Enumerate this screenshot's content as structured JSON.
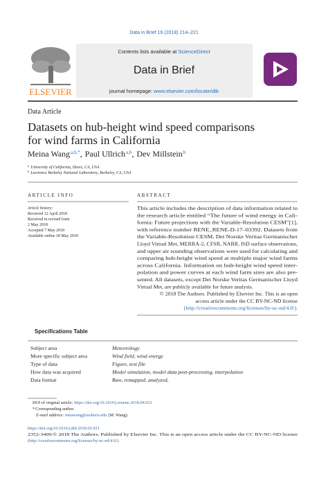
{
  "journal_ref": "Data in Brief 19 (2018) 214–221",
  "header": {
    "publisher_logo": "ELSEVIER",
    "contents": "Contents lists available at",
    "contents_link": "ScienceDirect",
    "journal": "Data in Brief",
    "homepage_label": "journal homepage:",
    "homepage_url": "www.elsevier.com/locate/dib"
  },
  "article_type": "Data Article",
  "title_lines": [
    "Datasets on hub-height wind speed comparisons",
    "for wind farms in California"
  ],
  "authors": [
    {
      "name": "Meina Wang",
      "affiliations": "a,b,*"
    },
    {
      "name": "Paul Ullrich",
      "affiliations": "a,b"
    },
    {
      "name": "Dev Millstein",
      "affiliations": "b"
    }
  ],
  "author_separator": ",",
  "affiliations": [
    {
      "mark": "a",
      "text": "University of California, Davis, CA, USA"
    },
    {
      "mark": "b",
      "text": "Lawrence Berkeley National Laboratory, Berkeley, CA, USA"
    }
  ],
  "article_info": {
    "heading": "ARTICLE INFO",
    "history_label": "Article history:",
    "history": [
      "Received 12 April 2018",
      "Received in revised form",
      "2 May 2018",
      "Accepted 7 May 2018",
      "Available online 18 May 2018"
    ]
  },
  "abstract": {
    "heading": "ABSTRACT",
    "lines": [
      "This article includes the description of data information related to",
      "the research article entitled “The future of wind energy in Cali-",
      "fornia: Future projections with the Variable-Resolution CESM”[1],",
      "with reference number RENE_RENE-D-17–03392. Datasets from",
      "the Variable-Resolution CESM, Det Norske Veritas Germanischer",
      "Lloyd Virtual Met, MERRA-2, CFSR, NARR, ISD surface observations,",
      "and upper air sounding observations were used for calculating and",
      "comparing hub-height wind speed at multiple major wind farms",
      "across California. Information on hub-height wind speed inter-",
      "polation and power curves at each wind farm sites are also pre-",
      "sented. All datasets, except Det Norske Veritas Germanischer Lloyd",
      "Virtual Met, are publicly available for future analysis."
    ],
    "license_lines": [
      "© 2018 The Authors. Published by Elsevier Inc. This is an open",
      "access article under the CC BY-NC-ND license"
    ],
    "license_link": "(http://creativecommons.org/licenses/by-nc-nd/4.0/)."
  },
  "specifications": {
    "heading": "Specifications Table",
    "rows": [
      [
        "Subject area",
        "Meteorology"
      ],
      [
        "More specific subject area",
        "Wind field, wind energy"
      ],
      [
        "Type of data",
        "Figure, text file"
      ],
      [
        "How data was acquired",
        "Model simulation, model data post-processing, interpolation"
      ],
      [
        "Data format",
        "Raw, remapped, analyzed,"
      ]
    ]
  },
  "footnotes": {
    "doi_label": "DOI of original article:",
    "doi": "https://doi.org/10.1016/j.renene.2018.04.031",
    "corresponding_mark": "*",
    "corresponding": "Corresponding author.",
    "email_label": "E-mail address:",
    "email": "mnawang@ucdavis.edu",
    "email_name": "(M. Wang)."
  },
  "footer": {
    "doi": "https://doi.org/10.1016/j.dib.2018.05.031",
    "license_line1": "2352-3409/© 2018 The Authors. Published by Elsevier Inc. This is an open access article under the CC BY-NC-ND license",
    "license_line2": "(http://creativecommons.org/licenses/by-nc-nd/4.0/)."
  }
}
